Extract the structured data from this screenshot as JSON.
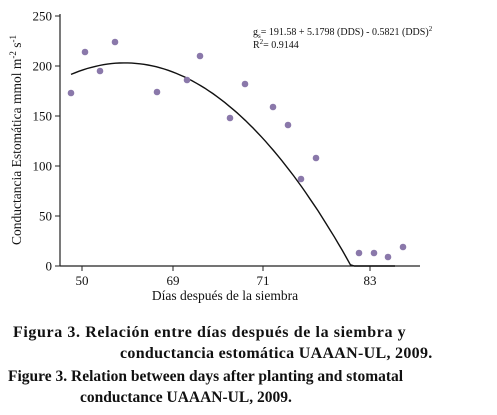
{
  "chart_data": {
    "type": "scatter",
    "title": "",
    "xlabel": "Días después de la siembra",
    "ylabel": "Conductancia Estomática mmol m",
    "ylabel_sup1": "-2",
    "ylabel_mid": " s",
    "ylabel_sup2": "-1",
    "x_tick_labels": [
      "50",
      "69",
      "71",
      "83"
    ],
    "y_ticks": [
      "0",
      "50",
      "100",
      "150",
      "200",
      "250"
    ],
    "ylim": [
      0,
      250
    ],
    "grid": false,
    "points": [
      {
        "i": 0,
        "y": 173
      },
      {
        "i": 1,
        "y": 214
      },
      {
        "i": 2,
        "y": 195
      },
      {
        "i": 3,
        "y": 224
      },
      {
        "i": 4,
        "y": 174
      },
      {
        "i": 5,
        "y": 186
      },
      {
        "i": 6,
        "y": 210
      },
      {
        "i": 7,
        "y": 148
      },
      {
        "i": 8,
        "y": 182
      },
      {
        "i": 9,
        "y": 159
      },
      {
        "i": 10,
        "y": 141
      },
      {
        "i": 11,
        "y": 87
      },
      {
        "i": 12,
        "y": 108
      },
      {
        "i": 13,
        "y": 13
      },
      {
        "i": 14,
        "y": 13
      },
      {
        "i": 15,
        "y": 9
      },
      {
        "i": 16,
        "y": 19
      }
    ],
    "fit": {
      "equation_prefix": "g",
      "equation_sub": "s",
      "equation_body": "= 191.58 + 5.1798 (DDS) - 0.5821 (DDS)",
      "equation_exp": "2",
      "r2_label": "R",
      "r2_sup": "2",
      "r2_value": "= 0.9144",
      "intercept": 191.58,
      "linear": 5.1798,
      "quadratic": -0.5821
    },
    "point_color": "#8a78aa",
    "curve_color": "#111111"
  },
  "captions": {
    "es_line1": "Figura 3. Relación entre días después de la siembra y",
    "es_line2": "conductancia estomática UAAAN-UL, 2009.",
    "en_line1": "Figure 3. Relation between days after planting and stomatal",
    "en_line2": "conductance UAAAN-UL, 2009."
  }
}
